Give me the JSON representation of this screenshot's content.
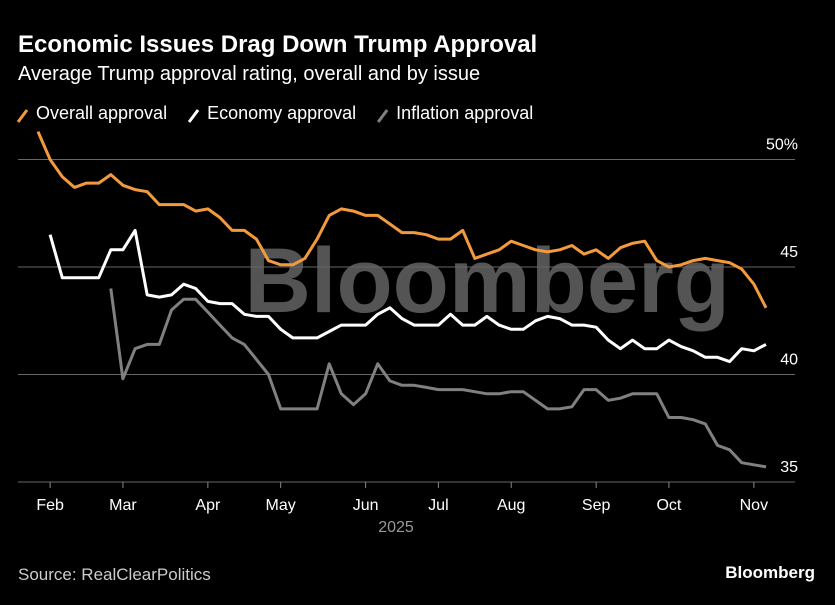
{
  "chart_data": {
    "type": "line",
    "title": "Economic Issues Drag Down Trump Approval",
    "subtitle": "Average Trump approval rating, overall and by issue",
    "x_label": "2025",
    "source": "Source: RealClearPolitics",
    "brand": "Bloomberg",
    "watermark": "Bloomberg",
    "categories": [
      null,
      "Feb",
      null,
      null,
      null,
      null,
      null,
      "Mar",
      null,
      null,
      null,
      null,
      null,
      null,
      "Apr",
      null,
      null,
      null,
      null,
      null,
      "May",
      null,
      null,
      null,
      null,
      null,
      null,
      "Jun",
      null,
      null,
      null,
      null,
      null,
      "Jul",
      null,
      null,
      null,
      null,
      null,
      "Aug",
      null,
      null,
      null,
      null,
      null,
      null,
      "Sep",
      null,
      null,
      null,
      null,
      null,
      "Oct",
      null,
      null,
      null,
      null,
      null,
      null,
      "Nov",
      null
    ],
    "ylim": [
      35,
      51.4
    ],
    "yticks": [
      35,
      40,
      45,
      {
        "value": 50,
        "label": "50%"
      }
    ],
    "grid": true,
    "series": [
      {
        "name": "Overall approval",
        "color": "#f39a3c",
        "values": [
          51.3,
          50.0,
          49.2,
          48.7,
          48.9,
          48.9,
          49.3,
          48.8,
          48.6,
          48.5,
          47.9,
          47.9,
          47.9,
          47.6,
          47.7,
          47.3,
          46.7,
          46.7,
          46.3,
          45.3,
          45.1,
          45.1,
          45.4,
          46.3,
          47.4,
          47.7,
          47.6,
          47.4,
          47.4,
          47.0,
          46.6,
          46.6,
          46.5,
          46.3,
          46.3,
          46.7,
          45.4,
          45.6,
          45.8,
          46.2,
          46.0,
          45.8,
          45.7,
          45.8,
          46.0,
          45.6,
          45.8,
          45.4,
          45.9,
          46.1,
          46.2,
          45.3,
          45.0,
          45.1,
          45.3,
          45.4,
          45.3,
          45.2,
          44.9,
          44.2,
          43.1
        ]
      },
      {
        "name": "Economy approval",
        "color": "#ffffff",
        "values": [
          null,
          46.5,
          44.5,
          44.5,
          44.5,
          44.5,
          45.8,
          45.8,
          46.7,
          43.7,
          43.6,
          43.7,
          44.2,
          44.0,
          43.4,
          43.3,
          43.3,
          42.8,
          42.7,
          42.7,
          42.1,
          41.7,
          41.7,
          41.7,
          42.0,
          42.3,
          42.3,
          42.3,
          42.8,
          43.1,
          42.6,
          42.3,
          42.3,
          42.3,
          42.8,
          42.3,
          42.3,
          42.7,
          42.3,
          42.1,
          42.1,
          42.5,
          42.7,
          42.6,
          42.3,
          42.3,
          42.2,
          41.6,
          41.2,
          41.6,
          41.2,
          41.2,
          41.6,
          41.3,
          41.1,
          40.8,
          40.8,
          40.6,
          41.2,
          41.1,
          41.4
        ]
      },
      {
        "name": "Inflation approval",
        "color": "#808080",
        "values": [
          null,
          null,
          null,
          null,
          null,
          null,
          44.0,
          39.8,
          41.2,
          41.4,
          41.4,
          43.0,
          43.5,
          43.5,
          42.9,
          42.3,
          41.7,
          41.4,
          40.7,
          40.0,
          38.4,
          38.4,
          38.4,
          38.4,
          40.5,
          39.1,
          38.6,
          39.1,
          40.5,
          39.7,
          39.5,
          39.5,
          39.4,
          39.3,
          39.3,
          39.3,
          39.2,
          39.1,
          39.1,
          39.2,
          39.2,
          38.8,
          38.4,
          38.4,
          38.5,
          39.3,
          39.3,
          38.8,
          38.9,
          39.1,
          39.1,
          39.1,
          38.0,
          38.0,
          37.9,
          37.7,
          36.7,
          36.5,
          35.9,
          35.8,
          35.7
        ]
      }
    ]
  }
}
